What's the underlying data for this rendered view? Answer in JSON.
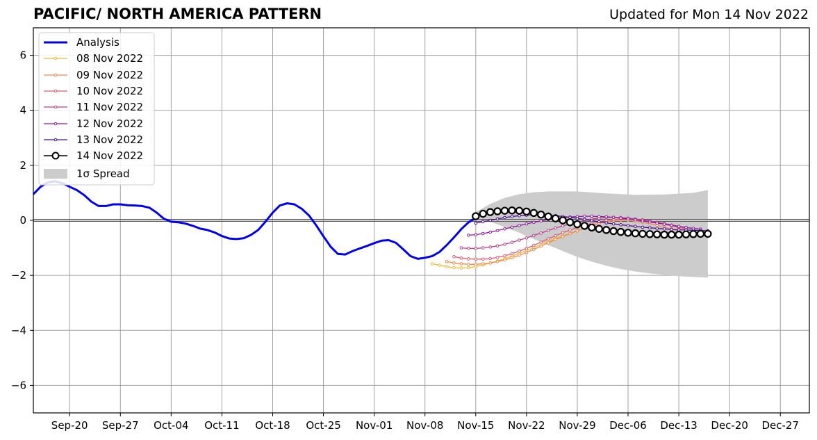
{
  "title": "PACIFIC/ NORTH AMERICA PATTERN",
  "subtitle": "Updated for Mon 14 Nov 2022",
  "chart_data": {
    "type": "line",
    "title": "PACIFIC/ NORTH AMERICA PATTERN",
    "xlabel": "",
    "ylabel": "",
    "x_ticks": [
      "Sep-20",
      "Sep-27",
      "Oct-04",
      "Oct-11",
      "Oct-18",
      "Oct-25",
      "Nov-01",
      "Nov-08",
      "Nov-15",
      "Nov-22",
      "Nov-29",
      "Dec-06",
      "Dec-13",
      "Dec-20",
      "Dec-27"
    ],
    "x_range": [
      "2022-09-15",
      "2022-12-31"
    ],
    "ylim": [
      -7,
      7
    ],
    "y_ticks": [
      -6,
      -4,
      -2,
      0,
      2,
      4,
      6
    ],
    "y_tick_labels": [
      "−6",
      "−4",
      "−2",
      "0",
      "2",
      "4",
      "6"
    ],
    "grid": true,
    "legend_position": "top-left",
    "series": [
      {
        "name": "Analysis",
        "color": "#0000ee",
        "start": "2022-09-15",
        "values": [
          0.95,
          1.22,
          1.38,
          1.42,
          1.35,
          1.22,
          1.1,
          0.92,
          0.68,
          0.52,
          0.52,
          0.58,
          0.58,
          0.55,
          0.54,
          0.52,
          0.46,
          0.28,
          0.06,
          -0.05,
          -0.07,
          -0.12,
          -0.2,
          -0.3,
          -0.35,
          -0.44,
          -0.57,
          -0.66,
          -0.68,
          -0.65,
          -0.53,
          -0.35,
          -0.05,
          0.28,
          0.54,
          0.62,
          0.58,
          0.42,
          0.18,
          -0.18,
          -0.58,
          -0.96,
          -1.22,
          -1.24,
          -1.12,
          -1.02,
          -0.93,
          -0.83,
          -0.74,
          -0.72,
          -0.82,
          -1.05,
          -1.3,
          -1.4,
          -1.36,
          -1.3,
          -1.15,
          -0.9,
          -0.62,
          -0.32,
          -0.07,
          0.08
        ]
      },
      {
        "name": "08 Nov 2022",
        "color": "#f5b731",
        "start": "2022-11-09",
        "values": [
          -1.58,
          -1.63,
          -1.68,
          -1.72,
          -1.73,
          -1.72,
          -1.68,
          -1.62,
          -1.55,
          -1.48,
          -1.39,
          -1.3,
          -1.2,
          -1.1,
          -0.99,
          -0.88,
          -0.77,
          -0.67,
          -0.57,
          -0.48,
          -0.4
        ]
      },
      {
        "name": "09 Nov 2022",
        "color": "#f0884a",
        "start": "2022-11-11",
        "values": [
          -1.5,
          -1.55,
          -1.58,
          -1.6,
          -1.6,
          -1.58,
          -1.55,
          -1.5,
          -1.44,
          -1.36,
          -1.27,
          -1.17,
          -1.06,
          -0.94,
          -0.82,
          -0.7,
          -0.59,
          -0.48,
          -0.38,
          -0.28,
          -0.19,
          -0.11,
          -0.05,
          -0.01,
          0.01,
          0.0,
          -0.03,
          -0.07,
          -0.12,
          -0.18,
          -0.25,
          -0.32,
          -0.38
        ]
      },
      {
        "name": "10 Nov 2022",
        "color": "#e05a6e",
        "start": "2022-11-12",
        "values": [
          -1.32,
          -1.37,
          -1.4,
          -1.41,
          -1.41,
          -1.39,
          -1.35,
          -1.29,
          -1.21,
          -1.12,
          -1.02,
          -0.91,
          -0.79,
          -0.67,
          -0.56,
          -0.45,
          -0.35,
          -0.26,
          -0.18,
          -0.11,
          -0.05,
          0.0,
          0.03,
          0.05,
          0.05,
          0.04,
          0.01,
          -0.03,
          -0.08,
          -0.14,
          -0.2,
          -0.26,
          -0.3
        ]
      },
      {
        "name": "11 Nov 2022",
        "color": "#bf3d8d",
        "start": "2022-11-13",
        "values": [
          -1.0,
          -1.02,
          -1.02,
          -1.0,
          -0.97,
          -0.93,
          -0.87,
          -0.8,
          -0.72,
          -0.64,
          -0.55,
          -0.46,
          -0.37,
          -0.28,
          -0.2,
          -0.13,
          -0.06,
          0.0,
          0.05,
          0.08,
          0.1,
          0.11,
          0.1,
          0.08,
          0.05,
          0.02,
          -0.02,
          -0.07,
          -0.12,
          -0.17,
          -0.22,
          -0.26,
          -0.3
        ]
      },
      {
        "name": "12 Nov 2022",
        "color": "#8b1a9e",
        "start": "2022-11-14",
        "values": [
          -0.54,
          -0.52,
          -0.48,
          -0.43,
          -0.37,
          -0.31,
          -0.25,
          -0.19,
          -0.13,
          -0.07,
          -0.02,
          0.03,
          0.07,
          0.1,
          0.12,
          0.14,
          0.15,
          0.15,
          0.14,
          0.13,
          0.11,
          0.08,
          0.05,
          0.02,
          -0.02,
          -0.06,
          -0.1,
          -0.14,
          -0.18,
          -0.22,
          -0.26,
          -0.29,
          -0.32
        ]
      },
      {
        "name": "13 Nov 2022",
        "color": "#4a0a8c",
        "start": "2022-11-15",
        "values": [
          -0.1,
          -0.05,
          0.0,
          0.05,
          0.1,
          0.14,
          0.17,
          0.19,
          0.2,
          0.2,
          0.19,
          0.17,
          0.14,
          0.11,
          0.07,
          0.03,
          -0.01,
          -0.05,
          -0.09,
          -0.13,
          -0.16,
          -0.19,
          -0.22,
          -0.25,
          -0.27,
          -0.29,
          -0.31,
          -0.33,
          -0.34,
          -0.35,
          -0.36,
          -0.37,
          -0.38
        ]
      },
      {
        "name": "14 Nov 2022",
        "color": "#000000",
        "start": "2022-11-15",
        "values": [
          0.15,
          0.24,
          0.3,
          0.33,
          0.35,
          0.36,
          0.35,
          0.32,
          0.27,
          0.21,
          0.14,
          0.07,
          0.0,
          -0.07,
          -0.14,
          -0.2,
          -0.26,
          -0.31,
          -0.35,
          -0.39,
          -0.42,
          -0.45,
          -0.47,
          -0.49,
          -0.5,
          -0.51,
          -0.52,
          -0.52,
          -0.52,
          -0.51,
          -0.5,
          -0.49,
          -0.49
        ]
      }
    ],
    "spread": {
      "name": "1σ Spread",
      "color": "#cccccc",
      "start": "2022-11-15",
      "end": "2022-12-17",
      "upper_points": [
        [
          0,
          0.3
        ],
        [
          2,
          0.6
        ],
        [
          4,
          0.82
        ],
        [
          6,
          0.95
        ],
        [
          8,
          1.02
        ],
        [
          10,
          1.05
        ],
        [
          14,
          1.05
        ],
        [
          18,
          0.98
        ],
        [
          22,
          0.93
        ],
        [
          26,
          0.94
        ],
        [
          30,
          1.0
        ],
        [
          32,
          1.1
        ]
      ],
      "lower_points": [
        [
          0,
          0.1
        ],
        [
          2,
          -0.05
        ],
        [
          4,
          -0.25
        ],
        [
          6,
          -0.45
        ],
        [
          8,
          -0.68
        ],
        [
          10,
          -0.9
        ],
        [
          12,
          -1.12
        ],
        [
          14,
          -1.33
        ],
        [
          16,
          -1.5
        ],
        [
          18,
          -1.65
        ],
        [
          20,
          -1.77
        ],
        [
          22,
          -1.86
        ],
        [
          24,
          -1.93
        ],
        [
          26,
          -1.98
        ],
        [
          28,
          -2.03
        ],
        [
          30,
          -2.06
        ],
        [
          32,
          -2.08
        ]
      ]
    }
  }
}
